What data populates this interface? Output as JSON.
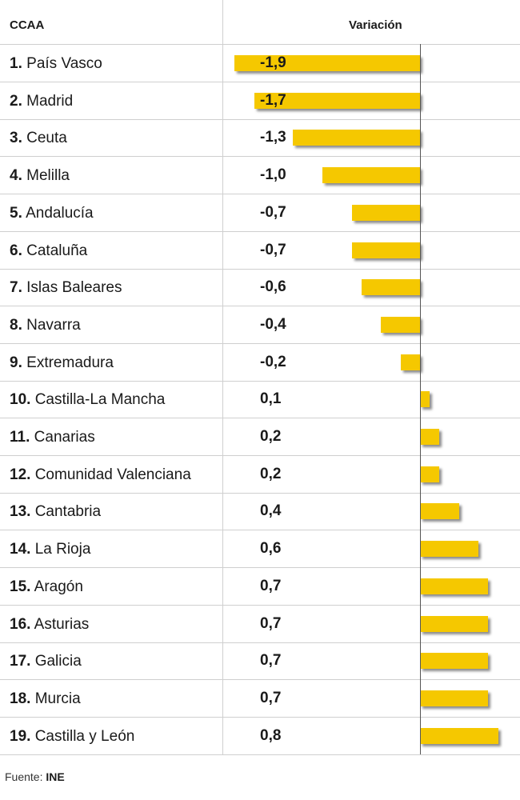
{
  "header": {
    "col_region": "CCAA",
    "col_variation": "Variación"
  },
  "source": {
    "label": "Fuente:",
    "value": "INE"
  },
  "colors": {
    "bar": "#f5c800",
    "grid": "#cfcfcf",
    "zero_line": "#555555"
  },
  "chart_data": {
    "type": "bar",
    "orientation": "horizontal",
    "categories": [
      "1. País Vasco",
      "2. Madrid",
      "3. Ceuta",
      "4. Melilla",
      "5. Andalucía",
      "6. Cataluña",
      "7. Islas Baleares",
      "8. Navarra",
      "9. Extremadura",
      "10. Castilla-La Mancha",
      "11. Canarias",
      "12. Comunidad Valenciana",
      "13. Cantabria",
      "14. La Rioja",
      "15. Aragón",
      "16. Asturias",
      "17. Galicia",
      "18. Murcia",
      "19. Castilla y León"
    ],
    "rows": [
      {
        "rank": "1.",
        "name": "País Vasco",
        "value": -1.9,
        "label": "-1,9"
      },
      {
        "rank": "2.",
        "name": "Madrid",
        "value": -1.7,
        "label": "-1,7"
      },
      {
        "rank": "3.",
        "name": "Ceuta",
        "value": -1.3,
        "label": "-1,3"
      },
      {
        "rank": "4.",
        "name": "Melilla",
        "value": -1.0,
        "label": "-1,0"
      },
      {
        "rank": "5.",
        "name": "Andalucía",
        "value": -0.7,
        "label": "-0,7"
      },
      {
        "rank": "6.",
        "name": "Cataluña",
        "value": -0.7,
        "label": "-0,7"
      },
      {
        "rank": "7.",
        "name": "Islas Baleares",
        "value": -0.6,
        "label": "-0,6"
      },
      {
        "rank": "8.",
        "name": "Navarra",
        "value": -0.4,
        "label": "-0,4"
      },
      {
        "rank": "9.",
        "name": "Extremadura",
        "value": -0.2,
        "label": "-0,2"
      },
      {
        "rank": "10.",
        "name": "Castilla-La Mancha",
        "value": 0.1,
        "label": "0,1"
      },
      {
        "rank": "11.",
        "name": "Canarias",
        "value": 0.2,
        "label": "0,2"
      },
      {
        "rank": "12.",
        "name": "Comunidad Valenciana",
        "value": 0.2,
        "label": "0,2"
      },
      {
        "rank": "13.",
        "name": "Cantabria",
        "value": 0.4,
        "label": "0,4"
      },
      {
        "rank": "14.",
        "name": "La Rioja",
        "value": 0.6,
        "label": "0,6"
      },
      {
        "rank": "15.",
        "name": "Aragón",
        "value": 0.7,
        "label": "0,7"
      },
      {
        "rank": "16.",
        "name": "Asturias",
        "value": 0.7,
        "label": "0,7"
      },
      {
        "rank": "17.",
        "name": "Galicia",
        "value": 0.7,
        "label": "0,7"
      },
      {
        "rank": "18.",
        "name": "Murcia",
        "value": 0.7,
        "label": "0,7"
      },
      {
        "rank": "19.",
        "name": "Castilla y León",
        "value": 0.8,
        "label": "0,8"
      }
    ],
    "xlim": [
      -1.9,
      0.8
    ],
    "grid": false
  }
}
